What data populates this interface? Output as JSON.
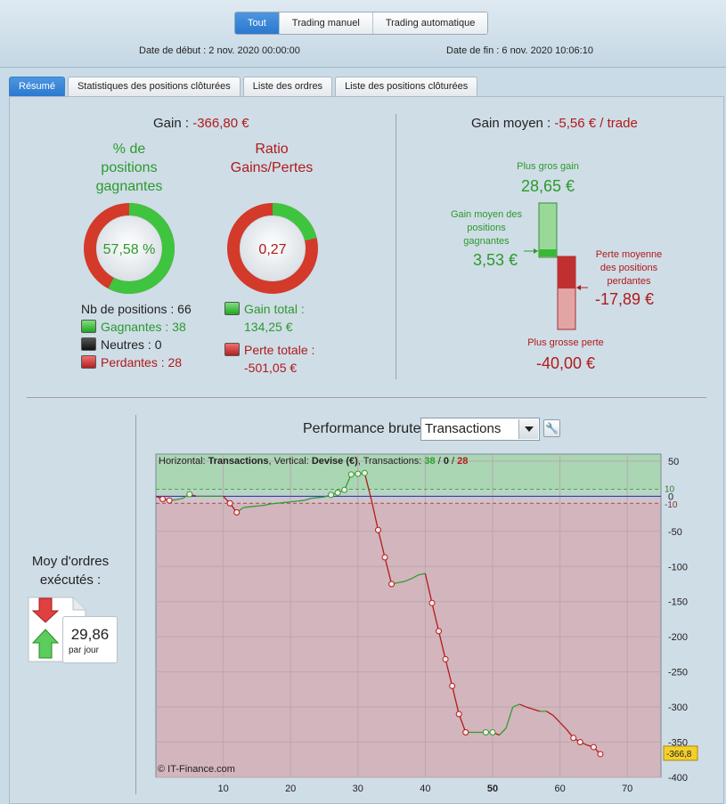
{
  "header": {
    "segments": [
      "Tout",
      "Trading manuel",
      "Trading automatique"
    ],
    "active_segment": "Tout",
    "start_label": "Date de début :",
    "start_value": "2 nov. 2020 00:00:00",
    "end_label": "Date de fin :",
    "end_value": "6 nov. 2020 10:06:10"
  },
  "tabs": [
    "Résumé",
    "Statistiques des positions clôturées",
    "Liste des ordres",
    "Liste des positions clôturées"
  ],
  "summary": {
    "gain_label": "Gain :",
    "gain_value": "-366,80 €",
    "pct_title": [
      "% de",
      "positions",
      "gagnantes"
    ],
    "pct_value": "57,58 %",
    "pct_fraction": 0.5758,
    "ratio_title": [
      "Ratio",
      "Gains/Pertes"
    ],
    "ratio_value": "0,27",
    "ratio_fraction": 0.2119,
    "nb_positions": "Nb de positions : 66",
    "gagnantes": "Gagnantes : 38",
    "neutres": "Neutres : 0",
    "perdantes": "Perdantes : 28",
    "gain_total_label": "Gain total :",
    "gain_total_value": "134,25 €",
    "perte_totale_label": "Perte totale :",
    "perte_totale_value": "-501,05 €"
  },
  "gain_moyen": {
    "label": "Gain moyen :",
    "value": "-5,56 € / trade",
    "plus_gros_gain_label": "Plus gros gain",
    "plus_gros_gain_value": "28,65 €",
    "gain_moyen_gagnantes_label": [
      "Gain moyen des",
      "positions",
      "gagnantes"
    ],
    "gain_moyen_gagnantes_value": "3,53 €",
    "perte_moyenne_label": [
      "Perte moyenne",
      "des positions",
      "perdantes"
    ],
    "perte_moyenne_value": "-17,89 €",
    "plus_grosse_perte_label": "Plus grosse perte",
    "plus_grosse_perte_value": "-40,00 €"
  },
  "ordres": {
    "title": [
      "Moy d'ordres",
      "exécutés :"
    ],
    "value": "29,86",
    "unit": "par jour"
  },
  "performance": {
    "title": "Performance brute",
    "dropdown_value": "Transactions",
    "tool_icon": "wrench-icon"
  },
  "chart_data": {
    "type": "line",
    "info_prefix": "Horizontal:",
    "info_h": "Transactions",
    "info_mid": ", Vertical:",
    "info_v": "Devise (€)",
    "info_tx": ", Transactions:",
    "info_win": "38",
    "info_sep1": " / ",
    "info_neutral": "0",
    "info_sep2": " / ",
    "info_loss": "28",
    "copyright": "© IT-Finance.com",
    "xlim": [
      0,
      75
    ],
    "ylim": [
      -400,
      60
    ],
    "x_ticks": [
      10,
      20,
      30,
      40,
      50,
      60,
      70
    ],
    "x_tick_bold": 50,
    "y_ticks": [
      50,
      0,
      -50,
      -100,
      -150,
      -200,
      -250,
      -300,
      -350,
      -400
    ],
    "band_upper": 10,
    "band_lower": -10,
    "band_upper_label": "10",
    "band_lower_label": "-10",
    "last_label": "-366,8",
    "colors": {
      "win": "#2e9e2e",
      "loss": "#b31b1b",
      "zero": "#2233aa"
    },
    "x": [
      0,
      1,
      2,
      3,
      4,
      5,
      6,
      7,
      8,
      9,
      10,
      11,
      12,
      13,
      14,
      15,
      16,
      17,
      18,
      19,
      20,
      21,
      22,
      23,
      24,
      25,
      26,
      27,
      28,
      29,
      30,
      31,
      32,
      33,
      34,
      35,
      36,
      37,
      38,
      39,
      40,
      41,
      42,
      43,
      44,
      45,
      46,
      47,
      48,
      49,
      50,
      51,
      52,
      53,
      54,
      55,
      56,
      57,
      58,
      59,
      60,
      61,
      62,
      63,
      64,
      65,
      66
    ],
    "y": [
      0,
      -4,
      -6,
      -5,
      -3,
      3,
      0,
      0,
      0,
      0,
      0,
      -10,
      -23,
      -16,
      -15,
      -14,
      -13,
      -11,
      -10,
      -9,
      -8,
      -7,
      -6,
      -3,
      -2,
      -1,
      2,
      5,
      9,
      31,
      32,
      33,
      -5,
      -48,
      -87,
      -125,
      -123,
      -121,
      -117,
      -112,
      -110,
      -152,
      -192,
      -232,
      -270,
      -310,
      -336,
      -336,
      -336,
      -336,
      -336,
      -340,
      -330,
      -300,
      -296,
      -300,
      -303,
      -306,
      -306,
      -312,
      -322,
      -332,
      -344,
      -350,
      -354,
      -357,
      -367
    ],
    "markers": [
      1,
      2,
      5,
      11,
      12,
      26,
      27,
      28,
      29,
      30,
      31,
      33,
      34,
      35,
      41,
      42,
      43,
      44,
      45,
      46,
      49,
      50,
      62,
      63,
      65,
      66
    ]
  }
}
